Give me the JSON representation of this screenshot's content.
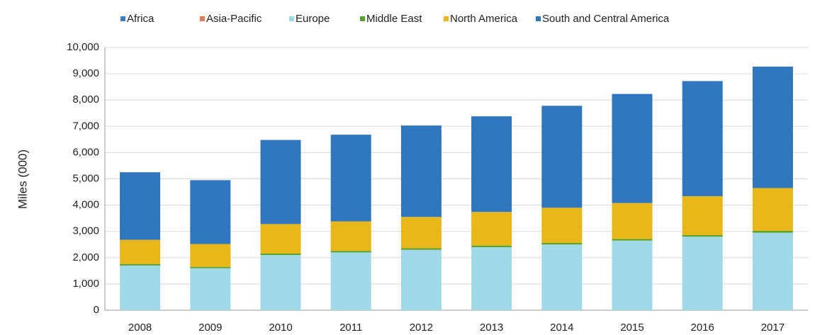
{
  "chart_data": {
    "type": "stacked_bar",
    "y_label": "Miles (000)",
    "categories": [
      "2008",
      "2009",
      "2010",
      "2011",
      "2012",
      "2013",
      "2014",
      "2015",
      "2016",
      "2017"
    ],
    "series": [
      {
        "name": "Africa",
        "color": "#3a7fc4",
        "values": [
          0,
          0,
          0,
          0,
          0,
          0,
          0,
          0,
          0,
          0
        ]
      },
      {
        "name": "Asia-Pacific",
        "color": "#e07b54",
        "values": [
          0,
          0,
          0,
          0,
          0,
          0,
          0,
          0,
          0,
          0
        ]
      },
      {
        "name": "Europe",
        "color": "#a2d9e8",
        "values": [
          1700,
          1600,
          2100,
          2200,
          2300,
          2400,
          2500,
          2650,
          2800,
          2950
        ]
      },
      {
        "name": "Middle East",
        "color": "#5aa02c",
        "values": [
          60,
          50,
          60,
          60,
          60,
          60,
          60,
          60,
          60,
          70
        ]
      },
      {
        "name": "North America",
        "color": "#e8b71a",
        "values": [
          920,
          870,
          1120,
          1120,
          1190,
          1280,
          1340,
          1370,
          1480,
          1630
        ]
      },
      {
        "name": "South and Central America",
        "color": "#2f76bf",
        "values": [
          2570,
          2430,
          3200,
          3300,
          3480,
          3640,
          3880,
          4150,
          4380,
          4620
        ]
      }
    ],
    "ylim": [
      0,
      10000
    ],
    "yticks": [
      0,
      {
        "value": 1000,
        "label": "1,000"
      },
      {
        "value": 2000,
        "label": "2,000"
      },
      {
        "value": 3000,
        "label": "3,000"
      },
      {
        "value": 4000,
        "label": "4,000"
      },
      {
        "value": 5000,
        "label": "5,000"
      },
      {
        "value": 6000,
        "label": "6,000"
      },
      {
        "value": 7000,
        "label": "7,000"
      },
      {
        "value": 8000,
        "label": "8,000"
      },
      {
        "value": 9000,
        "label": "9,000"
      },
      {
        "value": 10000,
        "label": "10,000"
      }
    ],
    "grid": true,
    "legend": "top"
  }
}
